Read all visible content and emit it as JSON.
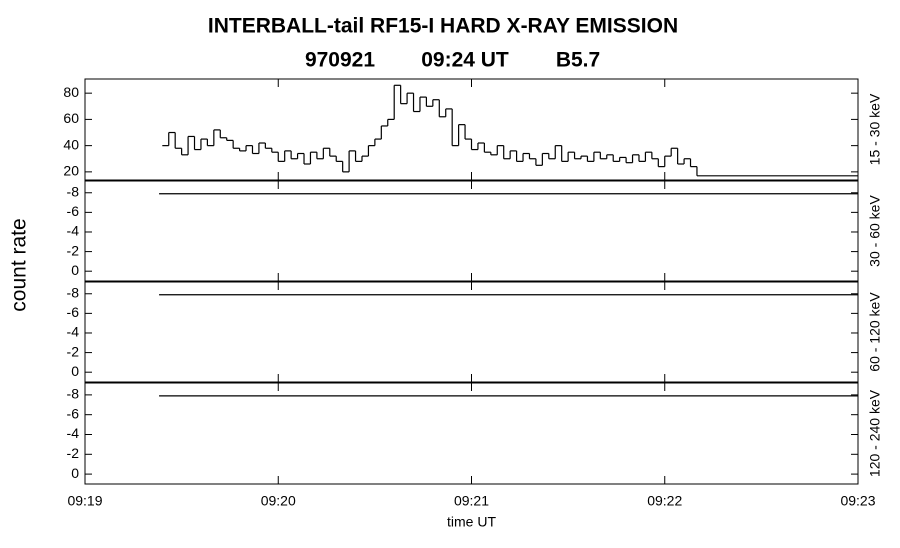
{
  "title": "INTERBALL-tail  RF15-I  HARD  X-RAY  EMISSION",
  "info": [
    "970921",
    "09:24 UT",
    "B5.7"
  ],
  "ylabel": "count rate",
  "chart_data": [
    {
      "type": "step",
      "channel": "15 - 30 keV",
      "x": [
        24,
        26,
        28,
        30,
        32,
        34,
        36,
        38,
        40,
        42,
        44,
        46,
        48,
        50,
        52,
        54,
        56,
        58,
        60,
        62,
        64,
        66,
        68,
        70,
        72,
        74,
        76,
        78,
        80,
        82,
        84,
        86,
        88,
        90,
        92,
        94,
        96,
        98,
        100,
        102,
        104,
        106,
        108,
        110,
        112,
        114,
        116,
        118,
        120,
        122,
        124,
        126,
        128,
        130,
        132,
        134,
        136,
        138,
        140,
        142,
        144,
        146,
        148,
        150,
        152,
        154,
        156,
        158,
        160,
        162,
        164,
        166,
        168,
        170,
        172,
        174,
        176,
        178,
        180,
        182,
        184,
        186,
        188,
        190
      ],
      "series": [
        {
          "color": "#000000",
          "values": [
            40,
            50,
            38,
            33,
            47,
            37,
            45,
            40,
            52,
            46,
            44,
            38,
            36,
            40,
            34,
            42,
            38,
            35,
            28,
            36,
            30,
            34,
            26,
            35,
            30,
            38,
            32,
            28,
            20,
            36,
            28,
            32,
            40,
            45,
            55,
            60,
            86,
            72,
            80,
            66,
            77,
            70,
            75,
            62,
            68,
            40,
            56,
            45,
            37,
            42,
            35,
            33,
            40,
            30,
            36,
            28,
            34,
            30,
            25,
            34,
            30,
            40,
            28,
            35,
            30,
            32,
            28,
            35,
            30,
            33,
            28,
            31,
            27,
            33,
            28,
            35,
            30,
            24,
            32,
            38,
            26,
            30,
            24,
            17
          ]
        }
      ],
      "ylim": [
        13.8,
        90.8
      ],
      "yticks": [
        20,
        40,
        60,
        80
      ]
    },
    {
      "type": "line",
      "channel": "30 - 60 keV",
      "x": [
        23,
        240
      ],
      "series": [
        {
          "color": "#000000",
          "values": [
            -7.9,
            -7.9
          ]
        }
      ],
      "ylim": [
        1.0,
        -9.2
      ],
      "yticks": [
        -8,
        -6,
        -4,
        -2,
        0
      ]
    },
    {
      "type": "line",
      "channel": "60 - 120 keV",
      "x": [
        23,
        240
      ],
      "series": [
        {
          "color": "#000000",
          "values": [
            -7.9,
            -7.9
          ]
        }
      ],
      "ylim": [
        1.0,
        -9.2
      ],
      "yticks": [
        -8,
        -6,
        -4,
        -2,
        0
      ]
    },
    {
      "type": "line",
      "channel": "120 - 240 keV",
      "x": [
        23,
        240
      ],
      "series": [
        {
          "color": "#000000",
          "values": [
            -7.9,
            -7.9
          ]
        }
      ],
      "ylim": [
        1.0,
        -9.2
      ],
      "yticks": [
        -8,
        -6,
        -4,
        -2,
        0
      ],
      "xlabel": "time UT",
      "xlim": [
        0,
        240
      ],
      "xticks": [
        {
          "value": 0,
          "label": "09:19"
        },
        {
          "value": 60,
          "label": "09:20"
        },
        {
          "value": 120,
          "label": "09:21"
        },
        {
          "value": 180,
          "label": "09:22"
        },
        {
          "value": 240,
          "label": "09:23"
        }
      ]
    }
  ]
}
